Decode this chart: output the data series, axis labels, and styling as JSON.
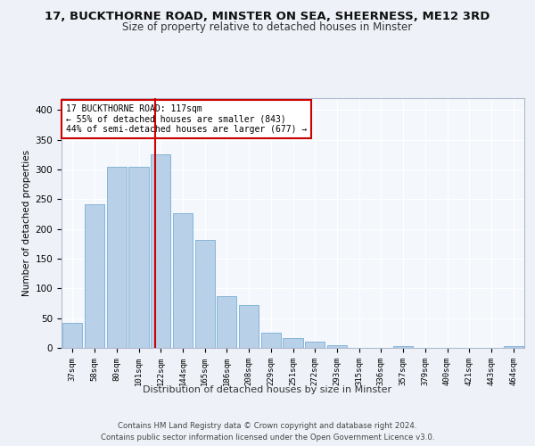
{
  "title": "17, BUCKTHORNE ROAD, MINSTER ON SEA, SHEERNESS, ME12 3RD",
  "subtitle": "Size of property relative to detached houses in Minster",
  "xlabel": "Distribution of detached houses by size in Minster",
  "ylabel": "Number of detached properties",
  "categories": [
    "37sqm",
    "58sqm",
    "80sqm",
    "101sqm",
    "122sqm",
    "144sqm",
    "165sqm",
    "186sqm",
    "208sqm",
    "229sqm",
    "251sqm",
    "272sqm",
    "293sqm",
    "315sqm",
    "336sqm",
    "357sqm",
    "379sqm",
    "400sqm",
    "421sqm",
    "443sqm",
    "464sqm"
  ],
  "values": [
    42,
    241,
    305,
    305,
    325,
    227,
    181,
    87,
    72,
    26,
    16,
    10,
    4,
    0,
    0,
    3,
    0,
    0,
    0,
    0,
    3
  ],
  "bar_color": "#b8d0e8",
  "bar_edge_color": "#7aaed4",
  "marker_label": "17 BUCKTHORNE ROAD: 117sqm",
  "annotation_line1": "← 55% of detached houses are smaller (843)",
  "annotation_line2": "44% of semi-detached houses are larger (677) →",
  "marker_color": "#cc0000",
  "ylim": [
    0,
    420
  ],
  "yticks": [
    0,
    50,
    100,
    150,
    200,
    250,
    300,
    350,
    400
  ],
  "footer": "Contains HM Land Registry data © Crown copyright and database right 2024.\nContains public sector information licensed under the Open Government Licence v3.0.",
  "bg_color": "#eef2f8",
  "plot_bg_color": "#f4f7fc"
}
